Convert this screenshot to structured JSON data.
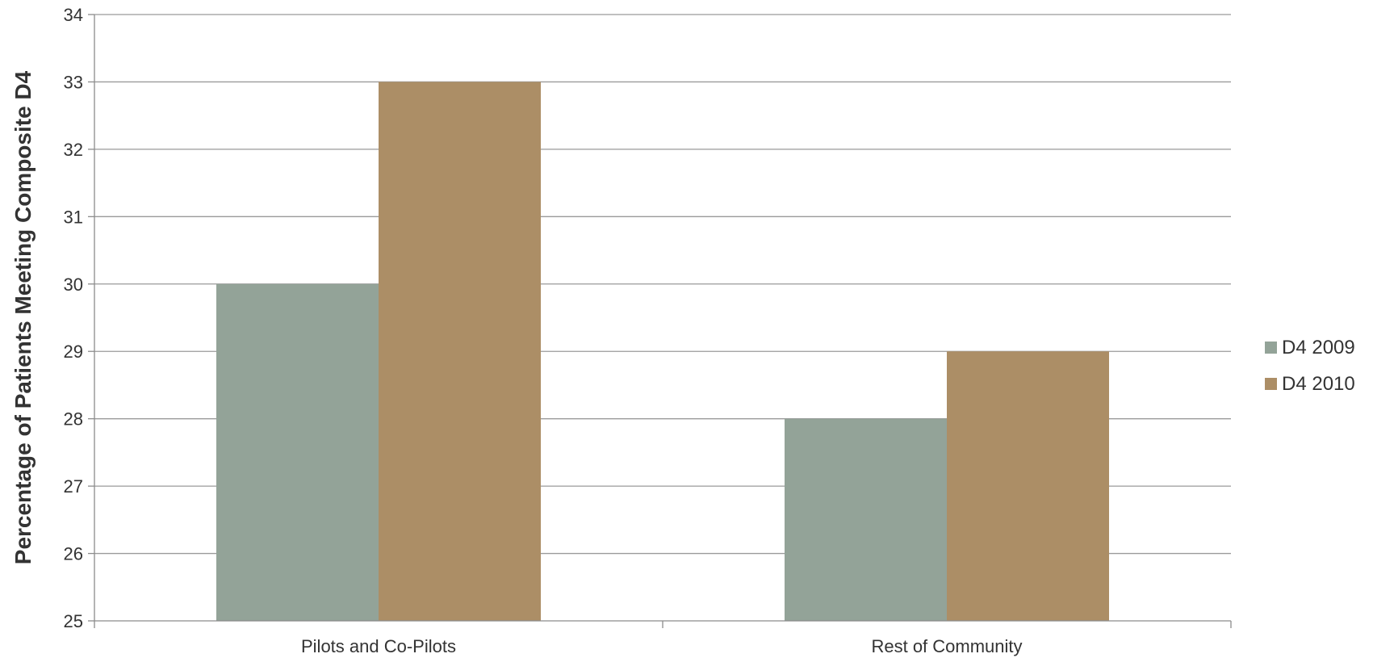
{
  "chart_data": {
    "type": "bar",
    "title": "",
    "xlabel": "",
    "ylabel": "Percentage of Patients Meeting Composite D4",
    "ylim": [
      25,
      34
    ],
    "yticks": [
      25,
      26,
      27,
      28,
      29,
      30,
      31,
      32,
      33,
      34
    ],
    "grid": true,
    "legend_position": "right",
    "categories": [
      "Pilots and Co-Pilots",
      "Rest of Community"
    ],
    "series": [
      {
        "name": "D4 2009",
        "color": "#93a398",
        "values": [
          30,
          28
        ]
      },
      {
        "name": "D4 2010",
        "color": "#ac8e66",
        "values": [
          33,
          29
        ]
      }
    ]
  }
}
